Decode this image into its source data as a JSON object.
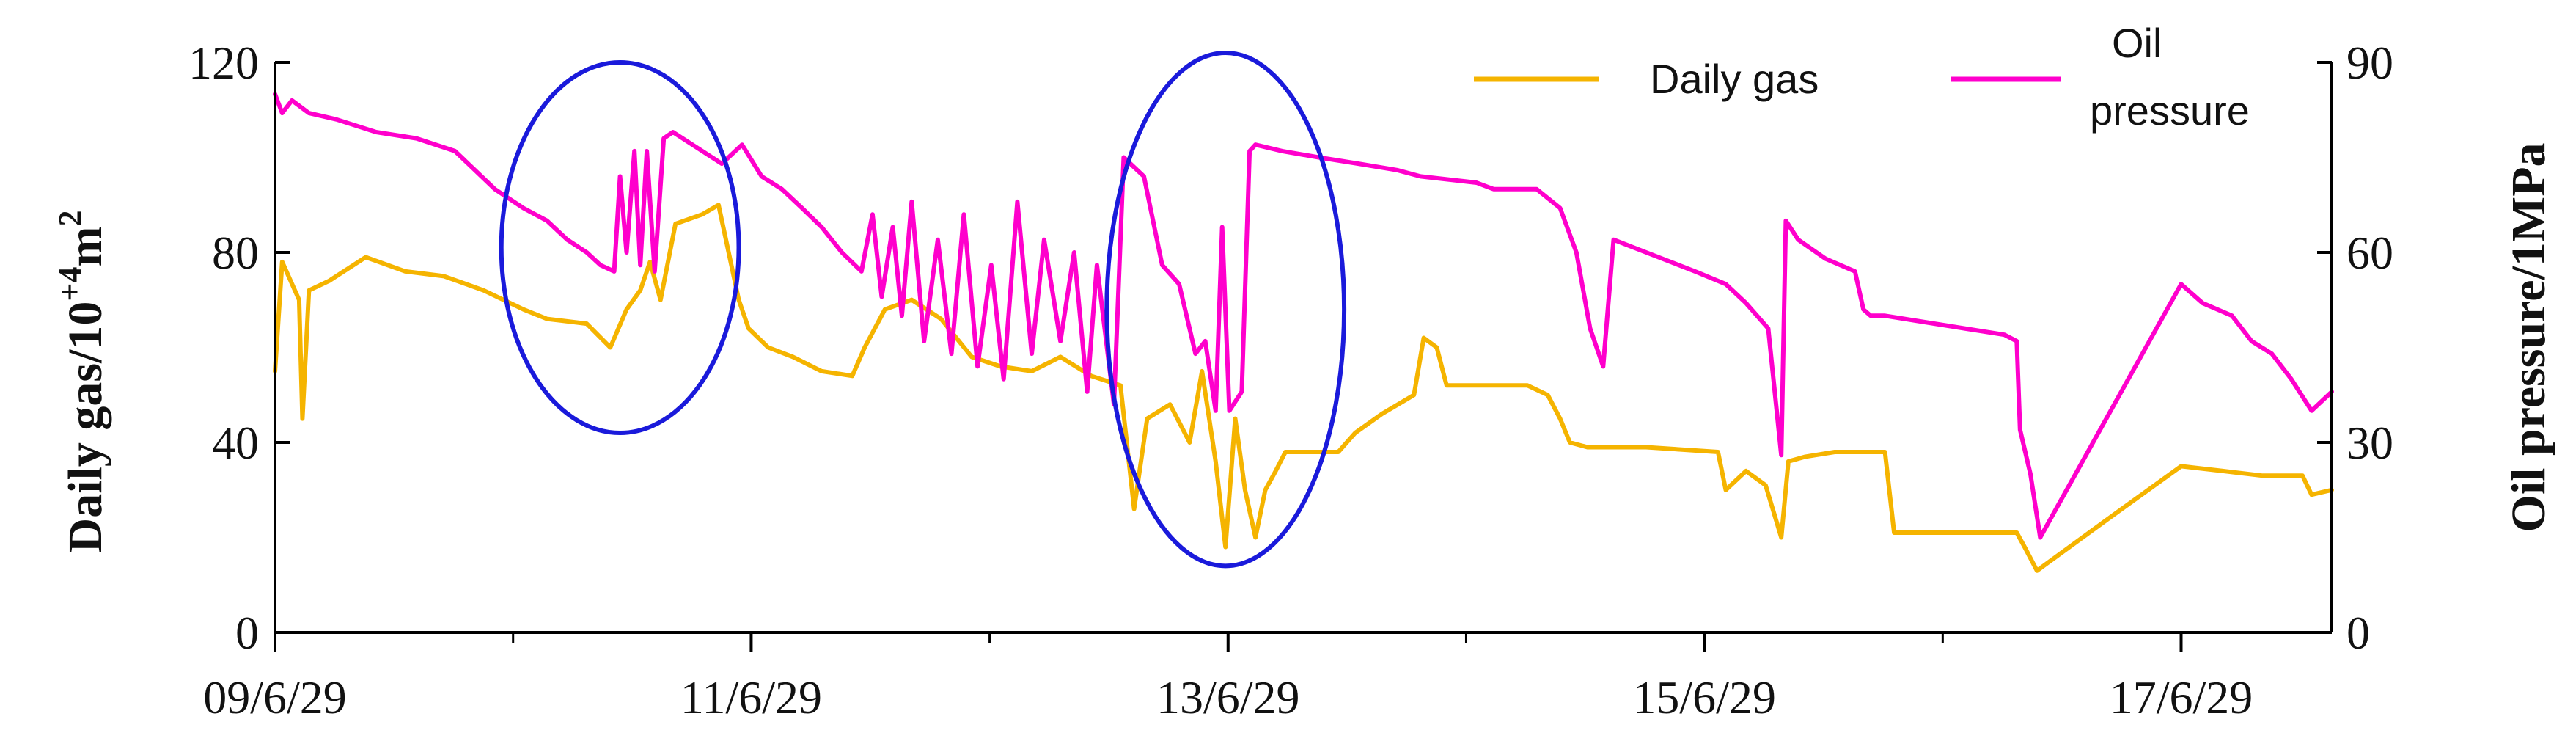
{
  "chart_data": {
    "type": "line",
    "x_axis": {
      "ticks": [
        "2009-06-29",
        "2011-06-29",
        "2013-06-29",
        "2015-06-29",
        "2017-06-29"
      ],
      "tick_labels": [
        "09/6/29",
        "11/6/29",
        "13/6/29",
        "15/6/29",
        "17/6/29"
      ],
      "range": [
        "2009-06-29",
        "2018-02-15"
      ]
    },
    "y_left": {
      "label_prefix": "Daily gas/10",
      "label_sup": "+4",
      "label_unit": "m",
      "label_sup2": "2",
      "ticks": [
        0,
        40,
        80,
        120
      ],
      "tick_labels": [
        "0",
        "40",
        "80",
        "120"
      ],
      "range": [
        0,
        120
      ]
    },
    "y_right": {
      "label": "Oil pressure/1MPa",
      "ticks": [
        0,
        30,
        60,
        90
      ],
      "tick_labels": [
        "0",
        "30",
        "60",
        "90"
      ],
      "range": [
        0,
        90
      ]
    },
    "legend": {
      "position": "top-right",
      "entries": [
        {
          "label": "Daily gas",
          "color": "#f5b400"
        },
        {
          "label_line1": "Oil",
          "label_line2": "pressure",
          "color": "#ff00cc"
        }
      ]
    },
    "annotation_color": "#1a1adb",
    "series": [
      {
        "name": "Daily gas",
        "axis": "left",
        "color": "#f5b400",
        "points": [
          [
            "2009-06-29",
            55
          ],
          [
            "2009-07-10",
            78
          ],
          [
            "2009-08-05",
            70
          ],
          [
            "2009-08-10",
            45
          ],
          [
            "2009-08-20",
            72
          ],
          [
            "2009-09-20",
            74
          ],
          [
            "2009-11-15",
            79
          ],
          [
            "2010-01-15",
            76
          ],
          [
            "2010-03-15",
            75
          ],
          [
            "2010-05-15",
            72
          ],
          [
            "2010-07-15",
            68
          ],
          [
            "2010-08-20",
            66
          ],
          [
            "2010-10-20",
            65
          ],
          [
            "2010-11-25",
            60
          ],
          [
            "2010-12-20",
            68
          ],
          [
            "2011-01-10",
            72
          ],
          [
            "2011-01-25",
            78
          ],
          [
            "2011-02-10",
            70
          ],
          [
            "2011-03-05",
            86
          ],
          [
            "2011-04-15",
            88
          ],
          [
            "2011-05-10",
            90
          ],
          [
            "2011-06-10",
            70
          ],
          [
            "2011-06-25",
            64
          ],
          [
            "2011-07-25",
            60
          ],
          [
            "2011-09-01",
            58
          ],
          [
            "2011-10-15",
            55
          ],
          [
            "2011-12-01",
            54
          ],
          [
            "2011-12-20",
            60
          ],
          [
            "2012-01-20",
            68
          ],
          [
            "2012-03-01",
            70
          ],
          [
            "2012-04-15",
            66
          ],
          [
            "2012-06-01",
            58
          ],
          [
            "2012-07-15",
            56
          ],
          [
            "2012-09-01",
            55
          ],
          [
            "2012-10-15",
            58
          ],
          [
            "2012-12-01",
            54
          ],
          [
            "2013-01-15",
            52
          ],
          [
            "2013-02-05",
            26
          ],
          [
            "2013-02-25",
            45
          ],
          [
            "2013-04-01",
            48
          ],
          [
            "2013-05-01",
            40
          ],
          [
            "2013-05-20",
            55
          ],
          [
            "2013-06-10",
            36
          ],
          [
            "2013-06-25",
            18
          ],
          [
            "2013-07-10",
            45
          ],
          [
            "2013-07-25",
            30
          ],
          [
            "2013-08-10",
            20
          ],
          [
            "2013-08-25",
            30
          ],
          [
            "2013-09-10",
            34
          ],
          [
            "2013-09-25",
            38
          ],
          [
            "2013-12-15",
            38
          ],
          [
            "2014-01-10",
            42
          ],
          [
            "2014-02-20",
            46
          ],
          [
            "2014-04-10",
            50
          ],
          [
            "2014-04-25",
            62
          ],
          [
            "2014-05-15",
            60
          ],
          [
            "2014-05-30",
            52
          ],
          [
            "2014-10-01",
            52
          ],
          [
            "2014-11-01",
            50
          ],
          [
            "2014-11-20",
            45
          ],
          [
            "2014-12-05",
            40
          ],
          [
            "2015-01-01",
            39
          ],
          [
            "2015-04-01",
            39
          ],
          [
            "2015-07-20",
            38
          ],
          [
            "2015-08-01",
            30
          ],
          [
            "2015-09-01",
            34
          ],
          [
            "2015-10-01",
            31
          ],
          [
            "2015-10-25",
            20
          ],
          [
            "2015-11-05",
            36
          ],
          [
            "2015-12-01",
            37
          ],
          [
            "2016-01-15",
            38
          ],
          [
            "2016-04-01",
            38
          ],
          [
            "2016-04-15",
            21
          ],
          [
            "2016-07-01",
            21
          ],
          [
            "2016-10-20",
            21
          ],
          [
            "2016-11-01",
            18
          ],
          [
            "2016-11-20",
            13
          ],
          [
            "2017-03-10",
            24
          ],
          [
            "2017-06-29",
            35
          ],
          [
            "2017-09-01",
            34
          ],
          [
            "2017-11-01",
            33
          ],
          [
            "2018-01-01",
            33
          ],
          [
            "2018-01-15",
            29
          ],
          [
            "2018-02-15",
            30
          ]
        ]
      },
      {
        "name": "Oil pressure",
        "axis": "right",
        "color": "#ff00cc",
        "points": [
          [
            "2009-06-29",
            85
          ],
          [
            "2009-07-10",
            82
          ],
          [
            "2009-07-25",
            84
          ],
          [
            "2009-08-20",
            82
          ],
          [
            "2009-10-01",
            81
          ],
          [
            "2009-12-01",
            79
          ],
          [
            "2010-02-01",
            78
          ],
          [
            "2010-04-01",
            76
          ],
          [
            "2010-06-01",
            70
          ],
          [
            "2010-07-15",
            67
          ],
          [
            "2010-08-20",
            65
          ],
          [
            "2010-09-20",
            62
          ],
          [
            "2010-10-20",
            60
          ],
          [
            "2010-11-10",
            58
          ],
          [
            "2010-12-01",
            57
          ],
          [
            "2010-12-10",
            72
          ],
          [
            "2010-12-20",
            60
          ],
          [
            "2011-01-01",
            76
          ],
          [
            "2011-01-10",
            58
          ],
          [
            "2011-01-20",
            76
          ],
          [
            "2011-02-01",
            57
          ],
          [
            "2011-02-15",
            78
          ],
          [
            "2011-03-01",
            79
          ],
          [
            "2011-04-15",
            76
          ],
          [
            "2011-05-15",
            74
          ],
          [
            "2011-06-15",
            77
          ],
          [
            "2011-07-15",
            72
          ],
          [
            "2011-08-15",
            70
          ],
          [
            "2011-09-15",
            67
          ],
          [
            "2011-10-15",
            64
          ],
          [
            "2011-11-15",
            60
          ],
          [
            "2011-12-15",
            57
          ],
          [
            "2012-01-01",
            66
          ],
          [
            "2012-01-15",
            53
          ],
          [
            "2012-02-01",
            64
          ],
          [
            "2012-02-15",
            50
          ],
          [
            "2012-03-01",
            68
          ],
          [
            "2012-03-20",
            46
          ],
          [
            "2012-04-10",
            62
          ],
          [
            "2012-05-01",
            44
          ],
          [
            "2012-05-20",
            66
          ],
          [
            "2012-06-10",
            42
          ],
          [
            "2012-07-01",
            58
          ],
          [
            "2012-07-20",
            40
          ],
          [
            "2012-08-10",
            68
          ],
          [
            "2012-09-01",
            44
          ],
          [
            "2012-09-20",
            62
          ],
          [
            "2012-10-15",
            46
          ],
          [
            "2012-11-05",
            60
          ],
          [
            "2012-11-25",
            38
          ],
          [
            "2012-12-10",
            58
          ],
          [
            "2013-01-05",
            36
          ],
          [
            "2013-01-20",
            75
          ],
          [
            "2013-02-20",
            72
          ],
          [
            "2013-03-20",
            58
          ],
          [
            "2013-04-15",
            55
          ],
          [
            "2013-05-10",
            44
          ],
          [
            "2013-05-25",
            46
          ],
          [
            "2013-06-10",
            35
          ],
          [
            "2013-06-20",
            64
          ],
          [
            "2013-07-01",
            35
          ],
          [
            "2013-07-20",
            38
          ],
          [
            "2013-08-01",
            76
          ],
          [
            "2013-08-10",
            77
          ],
          [
            "2013-09-20",
            76
          ],
          [
            "2013-11-15",
            75
          ],
          [
            "2014-01-15",
            74
          ],
          [
            "2014-03-15",
            73
          ],
          [
            "2014-04-20",
            72
          ],
          [
            "2014-07-15",
            71
          ],
          [
            "2014-08-10",
            70
          ],
          [
            "2014-10-15",
            70
          ],
          [
            "2014-11-20",
            67
          ],
          [
            "2014-12-15",
            60
          ],
          [
            "2015-01-05",
            48
          ],
          [
            "2015-01-25",
            42
          ],
          [
            "2015-02-10",
            62
          ],
          [
            "2015-04-01",
            60
          ],
          [
            "2015-06-15",
            57
          ],
          [
            "2015-08-01",
            55
          ],
          [
            "2015-09-01",
            52
          ],
          [
            "2015-10-05",
            48
          ],
          [
            "2015-10-25",
            28
          ],
          [
            "2015-11-01",
            65
          ],
          [
            "2015-11-20",
            62
          ],
          [
            "2016-01-01",
            59
          ],
          [
            "2016-02-15",
            57
          ],
          [
            "2016-02-28",
            51
          ],
          [
            "2016-03-10",
            50
          ],
          [
            "2016-04-01",
            50
          ],
          [
            "2016-06-01",
            49
          ],
          [
            "2016-08-01",
            48
          ],
          [
            "2016-10-01",
            47
          ],
          [
            "2016-10-20",
            46
          ],
          [
            "2016-10-25",
            32
          ],
          [
            "2016-11-10",
            25
          ],
          [
            "2016-11-25",
            15
          ],
          [
            "2017-06-29",
            55
          ],
          [
            "2017-08-01",
            52
          ],
          [
            "2017-09-15",
            50
          ],
          [
            "2017-10-15",
            46
          ],
          [
            "2017-11-15",
            44
          ],
          [
            "2017-12-15",
            40
          ],
          [
            "2018-01-15",
            35
          ],
          [
            "2018-02-15",
            38
          ]
        ]
      }
    ],
    "annotations": [
      {
        "shape": "ellipse",
        "center": [
          "2010-12-10",
          81
        ],
        "radius_days": 182,
        "radius_y": 39,
        "axis": "left"
      },
      {
        "shape": "ellipse",
        "center": [
          "2013-06-25",
          68
        ],
        "radius_days": 182,
        "radius_y": 54,
        "axis": "left"
      }
    ]
  }
}
